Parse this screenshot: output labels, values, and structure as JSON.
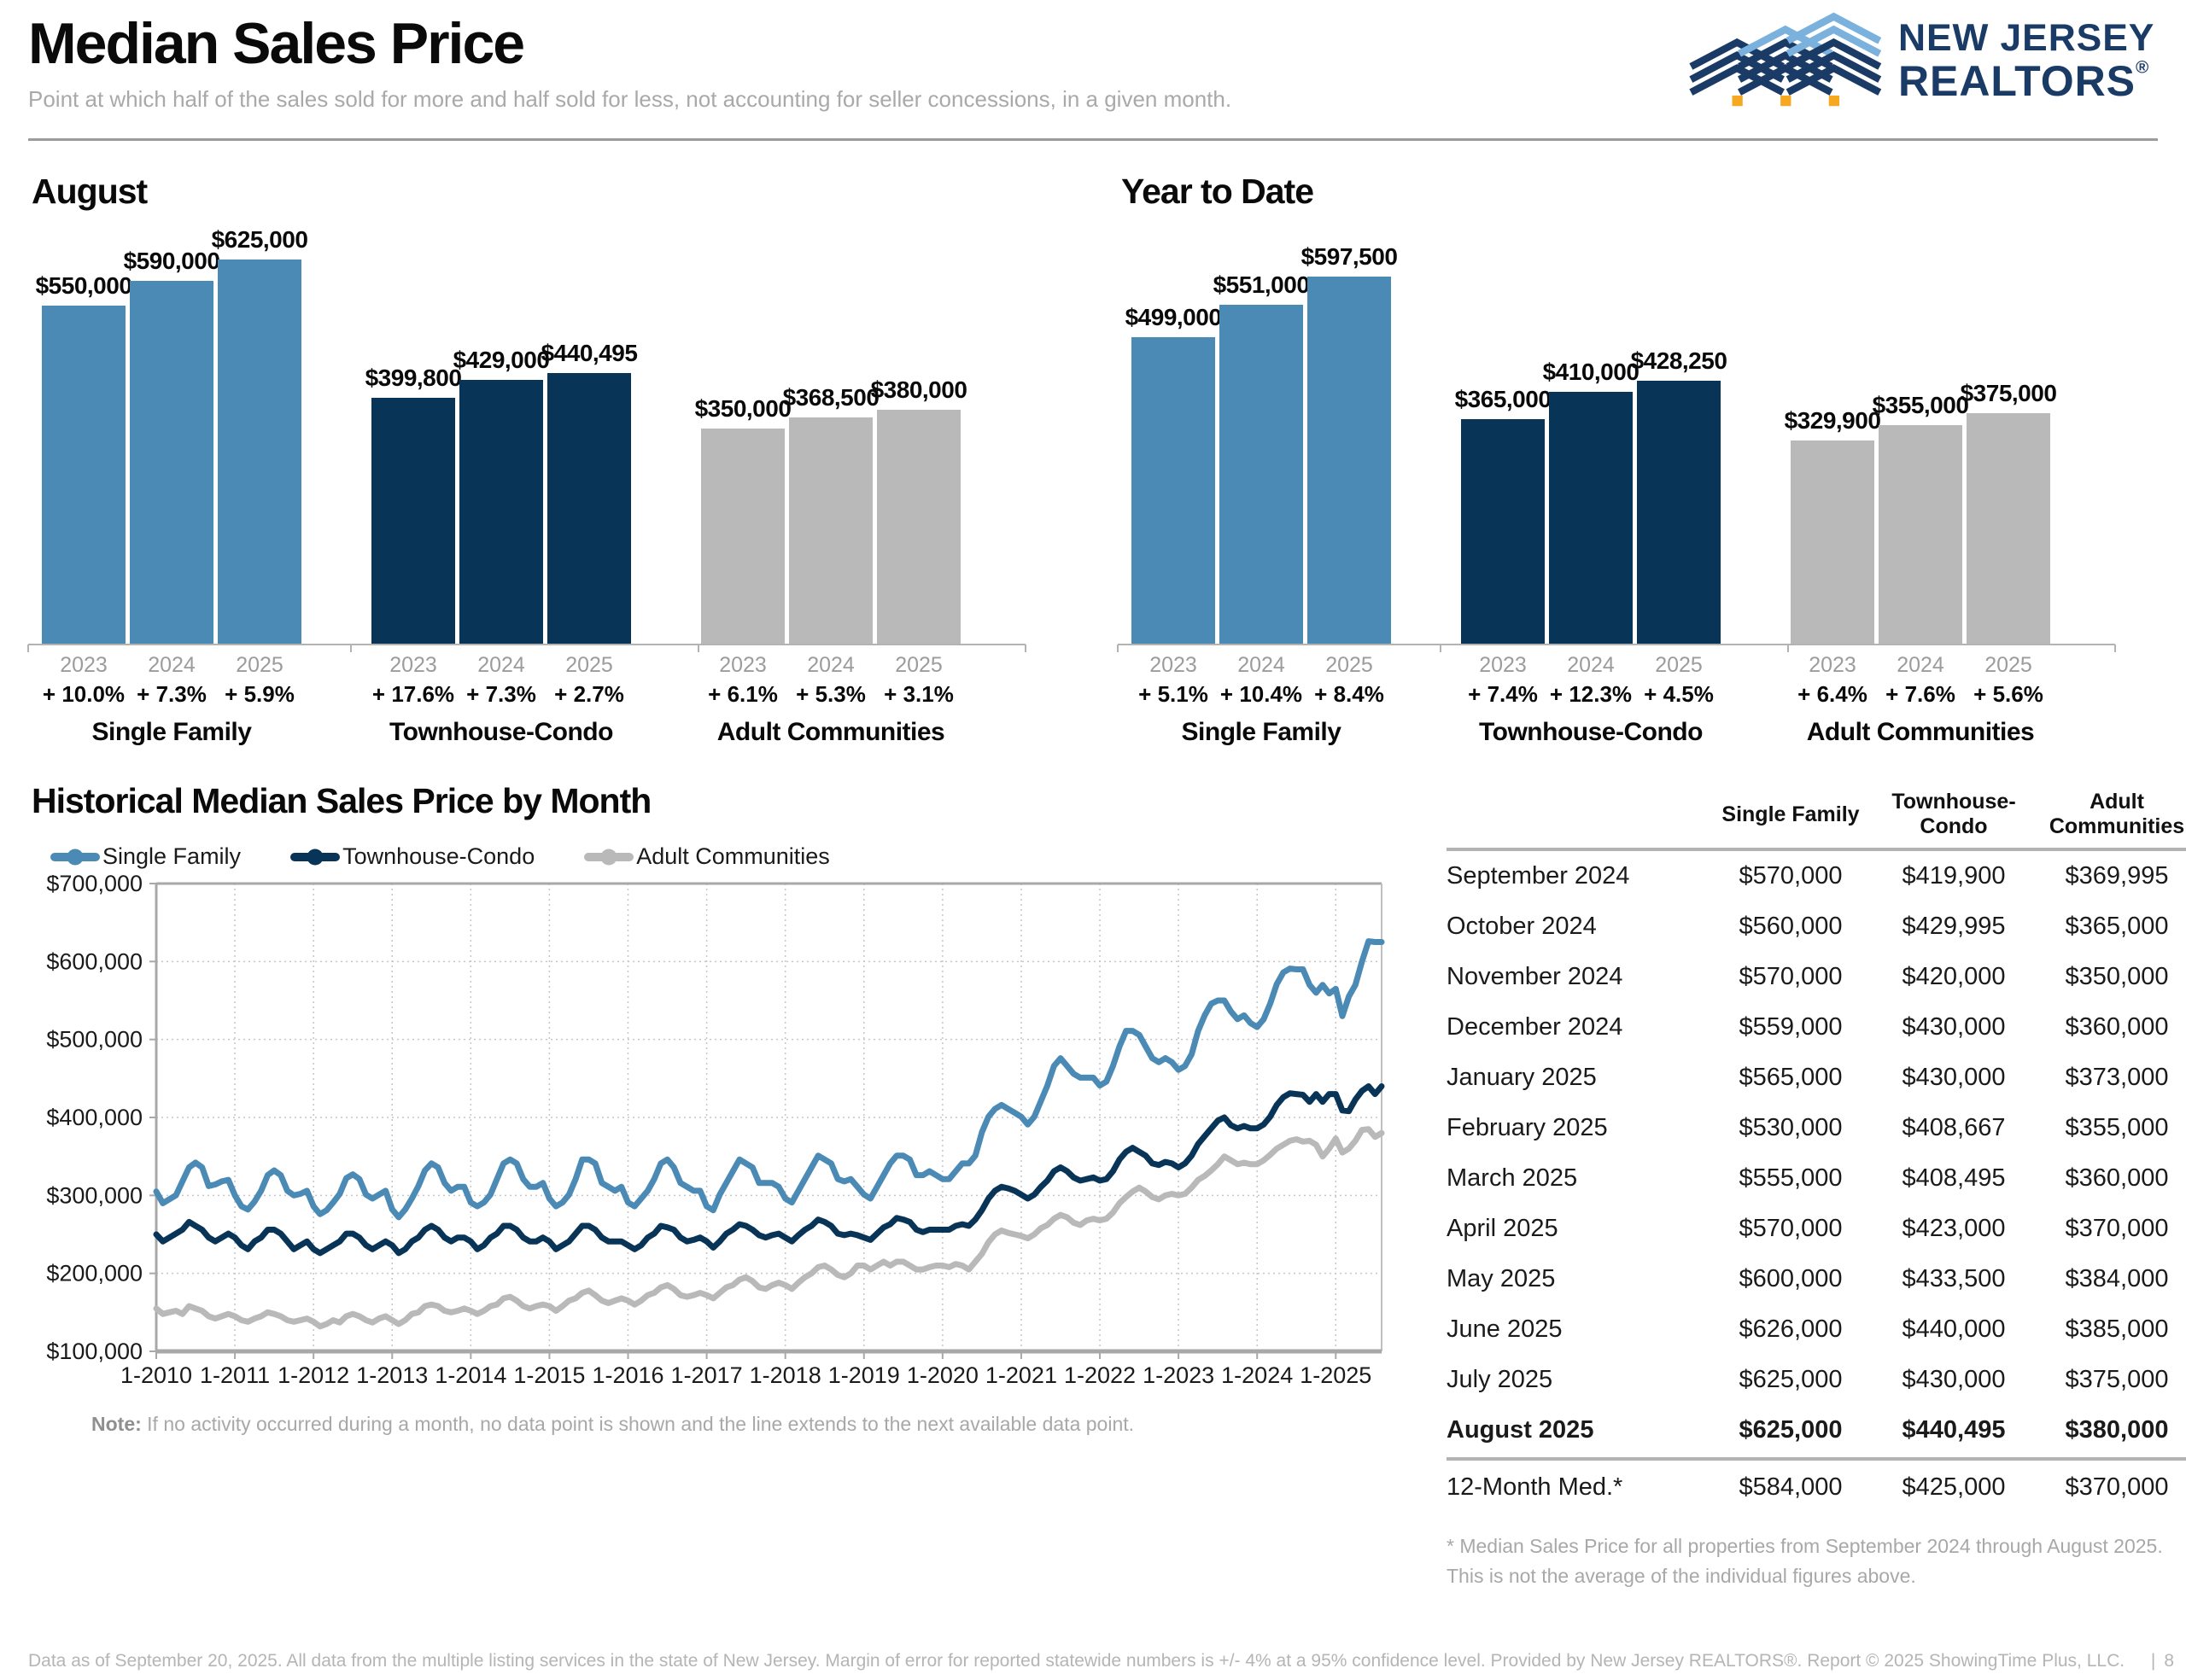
{
  "page": {
    "title": "Median Sales Price",
    "subtitle": "Point at which half of the sales sold for more and half sold for less, not accounting for seller concessions, in a given month.",
    "footer_text": "Data as of September 20, 2025. All data from the multiple listing services in the state of New Jersey. Margin of error for reported statewide numbers is +/- 4% at a 95% confidence level. Provided by New Jersey REALTORS®. Report © 2025 ShowingTime Plus, LLC.",
    "page_number": "8"
  },
  "logo": {
    "line1": "NEW JERSEY",
    "line2": "REALTORS",
    "registered": "®"
  },
  "colors": {
    "single_family": "#4a8ab5",
    "townhouse_condo": "#083457",
    "adult_communities": "#b9b9b9",
    "logo_navy": "#1b3b67",
    "logo_light_blue": "#7ab1dd",
    "logo_orange": "#f6a821"
  },
  "chart_data": [
    {
      "type": "bar",
      "title": "August",
      "unit": "USD",
      "ylim": [
        0,
        625000
      ],
      "groups": [
        {
          "label": "Single Family",
          "color_key": "single_family",
          "bars": [
            {
              "year": "2023",
              "value": 550000,
              "label": "$550,000",
              "change": "+ 10.0%"
            },
            {
              "year": "2024",
              "value": 590000,
              "label": "$590,000",
              "change": "+ 7.3%"
            },
            {
              "year": "2025",
              "value": 625000,
              "label": "$625,000",
              "change": "+ 5.9%"
            }
          ]
        },
        {
          "label": "Townhouse-Condo",
          "color_key": "townhouse_condo",
          "bars": [
            {
              "year": "2023",
              "value": 399800,
              "label": "$399,800",
              "change": "+ 17.6%"
            },
            {
              "year": "2024",
              "value": 429000,
              "label": "$429,000",
              "change": "+ 7.3%"
            },
            {
              "year": "2025",
              "value": 440495,
              "label": "$440,495",
              "change": "+ 2.7%"
            }
          ]
        },
        {
          "label": "Adult Communities",
          "color_key": "adult_communities",
          "bars": [
            {
              "year": "2023",
              "value": 350000,
              "label": "$350,000",
              "change": "+ 6.1%"
            },
            {
              "year": "2024",
              "value": 368500,
              "label": "$368,500",
              "change": "+ 5.3%"
            },
            {
              "year": "2025",
              "value": 380000,
              "label": "$380,000",
              "change": "+ 3.1%"
            }
          ]
        }
      ]
    },
    {
      "type": "bar",
      "title": "Year to Date",
      "unit": "USD",
      "ylim": [
        0,
        625000
      ],
      "groups": [
        {
          "label": "Single Family",
          "color_key": "single_family",
          "bars": [
            {
              "year": "2023",
              "value": 499000,
              "label": "$499,000",
              "change": "+ 5.1%"
            },
            {
              "year": "2024",
              "value": 551000,
              "label": "$551,000",
              "change": "+ 10.4%"
            },
            {
              "year": "2025",
              "value": 597500,
              "label": "$597,500",
              "change": "+ 8.4%"
            }
          ]
        },
        {
          "label": "Townhouse-Condo",
          "color_key": "townhouse_condo",
          "bars": [
            {
              "year": "2023",
              "value": 365000,
              "label": "$365,000",
              "change": "+ 7.4%"
            },
            {
              "year": "2024",
              "value": 410000,
              "label": "$410,000",
              "change": "+ 12.3%"
            },
            {
              "year": "2025",
              "value": 428250,
              "label": "$428,250",
              "change": "+ 4.5%"
            }
          ]
        },
        {
          "label": "Adult Communities",
          "color_key": "adult_communities",
          "bars": [
            {
              "year": "2023",
              "value": 329900,
              "label": "$329,900",
              "change": "+ 6.4%"
            },
            {
              "year": "2024",
              "value": 355000,
              "label": "$355,000",
              "change": "+ 7.6%"
            },
            {
              "year": "2025",
              "value": 375000,
              "label": "$375,000",
              "change": "+ 5.6%"
            }
          ]
        }
      ]
    },
    {
      "type": "line",
      "title": "Historical Median Sales Price by Month",
      "ylim": [
        100000,
        700000
      ],
      "y_tick_labels": [
        "$700,000",
        "$600,000",
        "$500,000",
        "$400,000",
        "$300,000",
        "$200,000",
        "$100,000"
      ],
      "x_tick_labels": [
        "1-2010",
        "1-2011",
        "1-2012",
        "1-2013",
        "1-2014",
        "1-2015",
        "1-2016",
        "1-2017",
        "1-2018",
        "1-2019",
        "1-2020",
        "1-2021",
        "1-2022",
        "1-2023",
        "1-2024",
        "1-2025"
      ],
      "x_start": "1-2010",
      "x_end": "8-2025",
      "grid": true,
      "legend_position": "top-left",
      "values_unit": "USD thousands, monthly Jan 2010 - Aug 2025",
      "series": [
        {
          "name": "Single Family",
          "color_key": "single_family",
          "values": [
            305,
            290,
            295,
            300,
            318,
            336,
            342,
            336,
            312,
            314,
            318,
            320,
            300,
            286,
            282,
            292,
            306,
            326,
            332,
            326,
            306,
            300,
            302,
            306,
            286,
            276,
            281,
            291,
            302,
            322,
            327,
            321,
            301,
            296,
            301,
            306,
            282,
            272,
            282,
            296,
            312,
            332,
            341,
            336,
            316,
            306,
            311,
            311,
            291,
            286,
            291,
            301,
            321,
            341,
            346,
            341,
            321,
            311,
            311,
            316,
            296,
            286,
            291,
            301,
            321,
            346,
            346,
            341,
            316,
            311,
            306,
            311,
            291,
            286,
            296,
            306,
            321,
            341,
            346,
            336,
            316,
            311,
            306,
            306,
            286,
            281,
            301,
            316,
            331,
            346,
            341,
            336,
            316,
            316,
            316,
            311,
            296,
            291,
            306,
            321,
            336,
            351,
            346,
            341,
            321,
            318,
            321,
            311,
            301,
            296,
            311,
            326,
            341,
            351,
            351,
            346,
            326,
            326,
            331,
            326,
            321,
            321,
            331,
            341,
            341,
            351,
            381,
            401,
            411,
            416,
            411,
            406,
            401,
            391,
            401,
            421,
            441,
            466,
            476,
            466,
            456,
            451,
            451,
            451,
            441,
            446,
            466,
            491,
            511,
            511,
            506,
            491,
            476,
            471,
            476,
            471,
            461,
            466,
            481,
            511,
            531,
            546,
            550,
            550,
            536,
            526,
            531,
            521,
            516,
            526,
            546,
            571,
            586,
            591,
            590,
            590,
            570,
            560,
            570,
            559,
            565,
            530,
            555,
            570,
            600,
            626,
            625,
            625
          ]
        },
        {
          "name": "Townhouse-Condo",
          "color_key": "townhouse_condo",
          "values": [
            250,
            241,
            246,
            251,
            256,
            266,
            261,
            256,
            246,
            241,
            246,
            251,
            246,
            236,
            231,
            241,
            246,
            256,
            256,
            251,
            241,
            231,
            236,
            241,
            231,
            226,
            231,
            236,
            241,
            251,
            251,
            246,
            236,
            231,
            236,
            241,
            236,
            226,
            231,
            241,
            246,
            256,
            261,
            256,
            246,
            241,
            246,
            246,
            241,
            231,
            236,
            246,
            251,
            261,
            261,
            256,
            246,
            241,
            241,
            246,
            241,
            231,
            236,
            241,
            251,
            261,
            261,
            256,
            246,
            241,
            241,
            241,
            236,
            231,
            236,
            246,
            251,
            261,
            259,
            256,
            246,
            241,
            243,
            246,
            241,
            233,
            241,
            251,
            256,
            263,
            261,
            256,
            249,
            246,
            249,
            251,
            246,
            241,
            249,
            256,
            261,
            269,
            266,
            261,
            251,
            249,
            251,
            249,
            246,
            243,
            251,
            259,
            263,
            271,
            269,
            266,
            256,
            253,
            256,
            256,
            256,
            256,
            261,
            263,
            261,
            269,
            281,
            296,
            306,
            311,
            309,
            306,
            301,
            296,
            301,
            311,
            319,
            331,
            336,
            331,
            323,
            319,
            321,
            323,
            319,
            321,
            331,
            346,
            356,
            361,
            356,
            351,
            341,
            339,
            343,
            341,
            336,
            341,
            351,
            366,
            376,
            386,
            396,
            400,
            390,
            386,
            389,
            386,
            386,
            391,
            401,
            416,
            426,
            431,
            430,
            429,
            420,
            430,
            420,
            430,
            430,
            409,
            408,
            423,
            434,
            440,
            430,
            440
          ]
        },
        {
          "name": "Adult Communities",
          "color_key": "adult_communities",
          "values": [
            155,
            148,
            150,
            152,
            148,
            158,
            155,
            152,
            145,
            142,
            145,
            148,
            145,
            140,
            138,
            142,
            145,
            150,
            148,
            145,
            140,
            138,
            140,
            142,
            138,
            132,
            135,
            140,
            137,
            145,
            148,
            145,
            140,
            137,
            142,
            145,
            140,
            135,
            140,
            148,
            150,
            158,
            160,
            158,
            152,
            150,
            152,
            155,
            152,
            148,
            152,
            158,
            160,
            168,
            170,
            165,
            158,
            155,
            158,
            160,
            158,
            152,
            158,
            165,
            168,
            175,
            178,
            172,
            165,
            162,
            165,
            168,
            165,
            160,
            165,
            172,
            175,
            182,
            185,
            180,
            172,
            170,
            172,
            175,
            172,
            168,
            175,
            182,
            185,
            192,
            195,
            190,
            182,
            180,
            185,
            188,
            185,
            180,
            188,
            195,
            200,
            208,
            210,
            205,
            198,
            195,
            200,
            210,
            210,
            205,
            210,
            215,
            210,
            215,
            215,
            210,
            205,
            205,
            208,
            210,
            210,
            208,
            212,
            210,
            205,
            215,
            225,
            240,
            250,
            255,
            252,
            250,
            248,
            245,
            250,
            258,
            262,
            270,
            275,
            272,
            265,
            262,
            268,
            270,
            268,
            270,
            278,
            290,
            298,
            305,
            310,
            305,
            298,
            295,
            300,
            302,
            300,
            302,
            310,
            320,
            325,
            332,
            340,
            350,
            345,
            340,
            342,
            340,
            340,
            345,
            352,
            360,
            365,
            370,
            372,
            369,
            370,
            365,
            350,
            360,
            373,
            355,
            360,
            370,
            384,
            385,
            375,
            380
          ]
        }
      ]
    }
  ],
  "historical_note": {
    "label": "Note:",
    "text": " If no activity occurred during a month, no data point is shown and the line extends to the next available data point."
  },
  "table": {
    "headers": [
      "Single Family",
      "Townhouse-Condo",
      "Adult Communities"
    ],
    "rows": [
      {
        "label": "September 2024",
        "values": [
          "$570,000",
          "$419,900",
          "$369,995"
        ],
        "bold": false
      },
      {
        "label": "October 2024",
        "values": [
          "$560,000",
          "$429,995",
          "$365,000"
        ],
        "bold": false
      },
      {
        "label": "November 2024",
        "values": [
          "$570,000",
          "$420,000",
          "$350,000"
        ],
        "bold": false
      },
      {
        "label": "December 2024",
        "values": [
          "$559,000",
          "$430,000",
          "$360,000"
        ],
        "bold": false
      },
      {
        "label": "January 2025",
        "values": [
          "$565,000",
          "$430,000",
          "$373,000"
        ],
        "bold": false
      },
      {
        "label": "February 2025",
        "values": [
          "$530,000",
          "$408,667",
          "$355,000"
        ],
        "bold": false
      },
      {
        "label": "March 2025",
        "values": [
          "$555,000",
          "$408,495",
          "$360,000"
        ],
        "bold": false
      },
      {
        "label": "April 2025",
        "values": [
          "$570,000",
          "$423,000",
          "$370,000"
        ],
        "bold": false
      },
      {
        "label": "May 2025",
        "values": [
          "$600,000",
          "$433,500",
          "$384,000"
        ],
        "bold": false
      },
      {
        "label": "June 2025",
        "values": [
          "$626,000",
          "$440,000",
          "$385,000"
        ],
        "bold": false
      },
      {
        "label": "July 2025",
        "values": [
          "$625,000",
          "$430,000",
          "$375,000"
        ],
        "bold": false
      },
      {
        "label": "August 2025",
        "values": [
          "$625,000",
          "$440,495",
          "$380,000"
        ],
        "bold": true
      }
    ],
    "summary": {
      "label": "12-Month Med.*",
      "values": [
        "$584,000",
        "$425,000",
        "$370,000"
      ]
    },
    "footnote": "* Median Sales Price for all properties from September 2024 through August 2025. This is not the average of the individual figures above."
  }
}
